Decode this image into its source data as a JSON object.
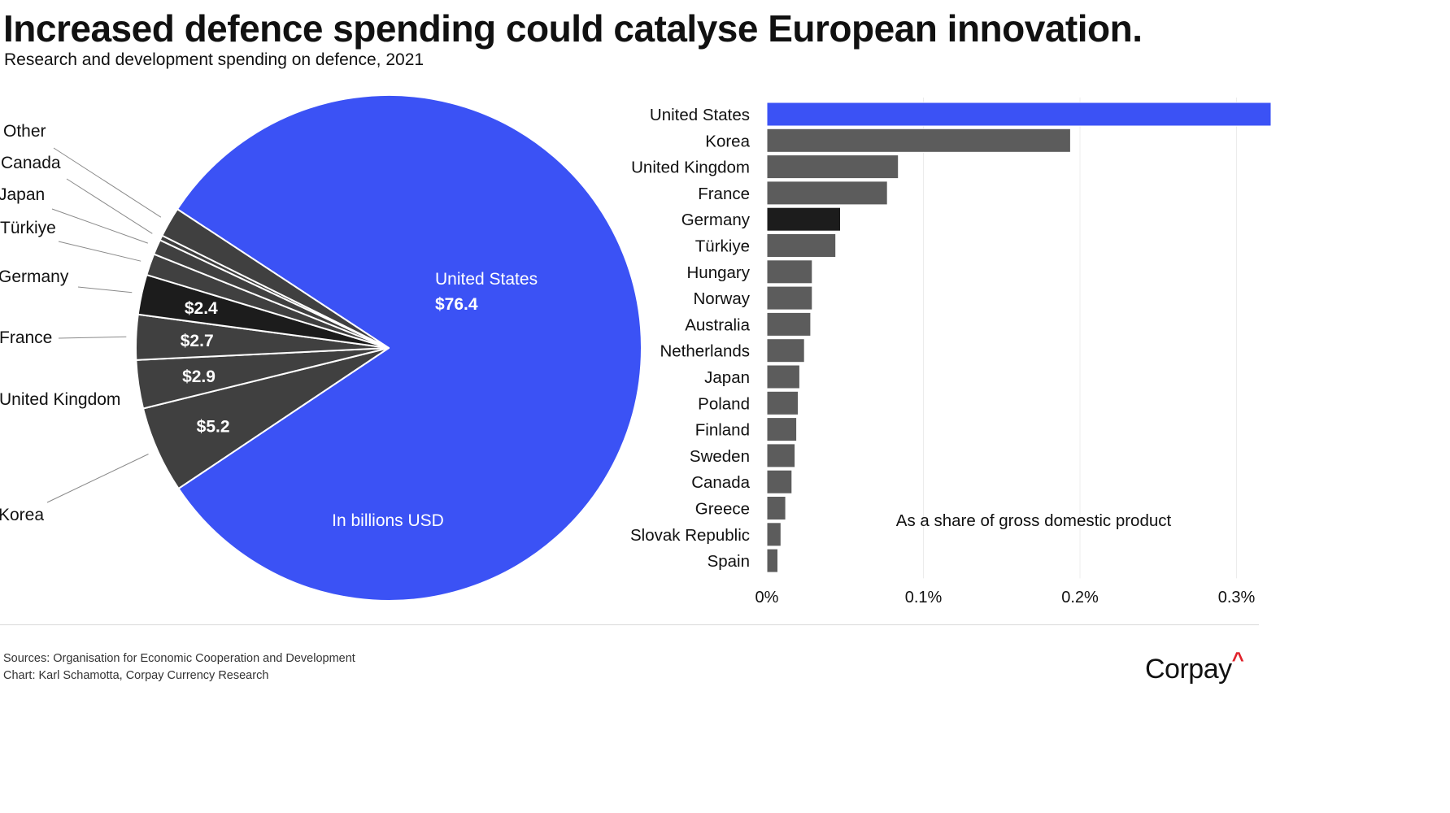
{
  "header": {
    "title": "Increased defence spending could catalyse European innovation.",
    "subtitle": "Research and development spending on defence, 2021"
  },
  "colors": {
    "accent": "#3b52f5",
    "slice_dark": "#404040",
    "highlight": "#1c1c1c",
    "bar_gray": "#5c5c5c",
    "gridline": "#ececec",
    "leader": "#8a8a8a"
  },
  "chart_data": [
    {
      "type": "pie",
      "title": "Research and development spending on defence, 2021",
      "unit_note": "In billions USD",
      "slices": [
        {
          "label": "United States",
          "value": 76.4,
          "value_label": "$76.4",
          "color": "#3b52f5"
        },
        {
          "label": "Korea",
          "value": 5.2,
          "value_label": "$5.2",
          "color": "#404040"
        },
        {
          "label": "United Kingdom",
          "value": 2.9,
          "value_label": "$2.9",
          "color": "#404040"
        },
        {
          "label": "France",
          "value": 2.7,
          "value_label": "$2.7",
          "color": "#404040"
        },
        {
          "label": "Germany",
          "value": 2.4,
          "value_label": "$2.4",
          "color": "#1c1c1c"
        },
        {
          "label": "Türkiye",
          "value": 1.3,
          "value_label": "",
          "color": "#404040"
        },
        {
          "label": "Japan",
          "value": 0.9,
          "value_label": "",
          "color": "#404040"
        },
        {
          "label": "Canada",
          "value": 0.3,
          "value_label": "",
          "color": "#404040"
        },
        {
          "label": "Other",
          "value": 1.8,
          "value_label": "",
          "color": "#404040"
        }
      ]
    },
    {
      "type": "bar",
      "orientation": "horizontal",
      "annotation": "As a share of gross domestic product",
      "xlabel": "",
      "ylabel": "",
      "xlim": [
        0,
        0.32
      ],
      "x_ticks": [
        0,
        0.1,
        0.2,
        0.3
      ],
      "x_tick_labels": [
        "0%",
        "0.1%",
        "0.2%",
        "0.3%"
      ],
      "grid": true,
      "categories": [
        "United States",
        "Korea",
        "United Kingdom",
        "France",
        "Germany",
        "Türkiye",
        "Hungary",
        "Norway",
        "Australia",
        "Netherlands",
        "Japan",
        "Poland",
        "Finland",
        "Sweden",
        "Canada",
        "Greece",
        "Slovak Republic",
        "Spain"
      ],
      "values": [
        0.33,
        0.194,
        0.084,
        0.077,
        0.047,
        0.044,
        0.029,
        0.029,
        0.028,
        0.024,
        0.021,
        0.02,
        0.019,
        0.018,
        0.016,
        0.012,
        0.009,
        0.007
      ],
      "bar_colors": [
        "#3b52f5",
        "#5c5c5c",
        "#5c5c5c",
        "#5c5c5c",
        "#1c1c1c",
        "#5c5c5c",
        "#5c5c5c",
        "#5c5c5c",
        "#5c5c5c",
        "#5c5c5c",
        "#5c5c5c",
        "#5c5c5c",
        "#5c5c5c",
        "#5c5c5c",
        "#5c5c5c",
        "#5c5c5c",
        "#5c5c5c",
        "#5c5c5c"
      ]
    }
  ],
  "footer": {
    "sources": "Sources: Organisation for Economic Cooperation and Development",
    "credit": "Chart: Karl Schamotta, Corpay Currency Research",
    "brand": "Corpay",
    "brand_mark": "^"
  }
}
